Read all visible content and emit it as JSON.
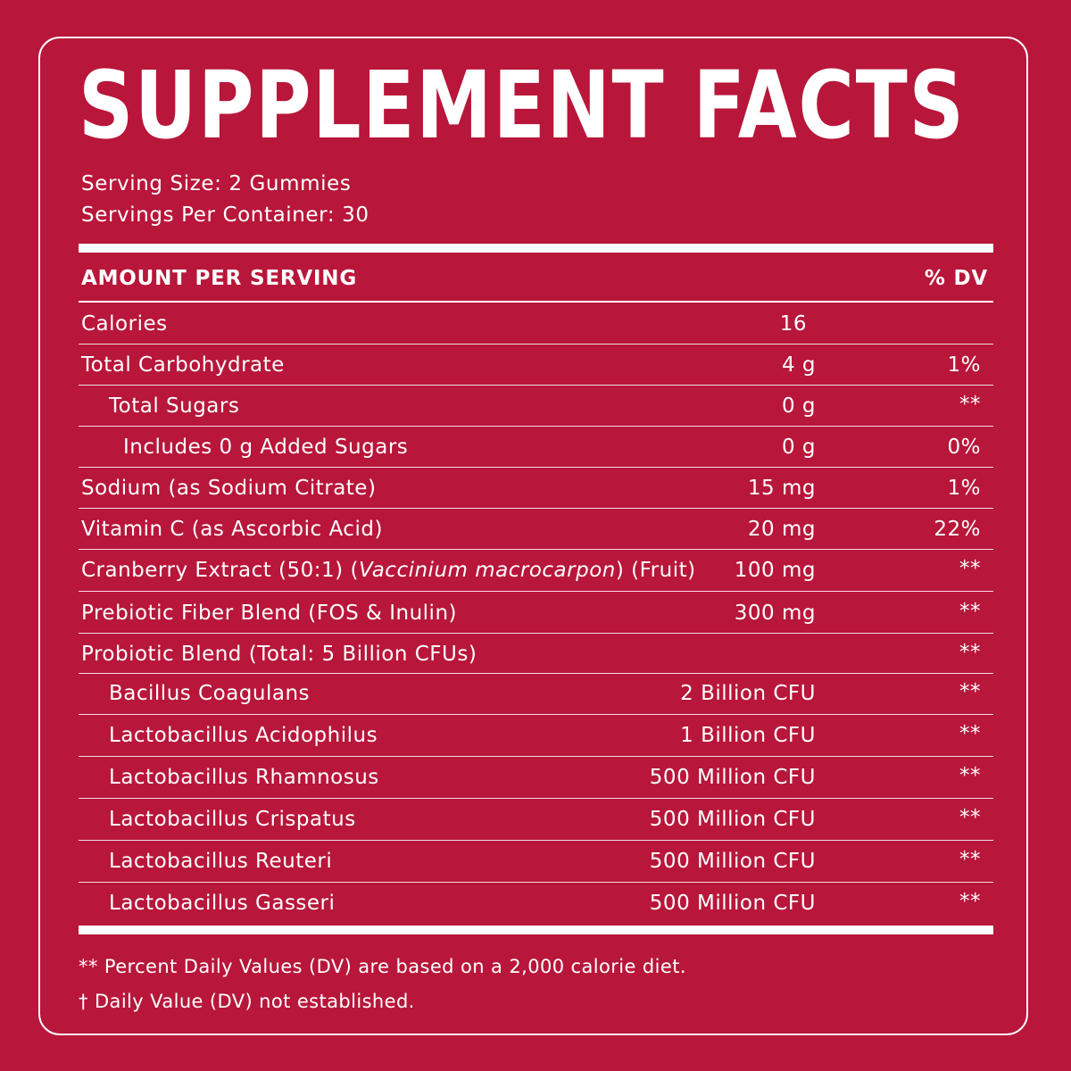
{
  "colors": {
    "background": "#b8163a",
    "text": "#ffffff"
  },
  "title": "SUPPLEMENT FACTS",
  "serving_size": "Serving Size: 2 Gummies",
  "servings_per_container": "Servings Per Container: 30",
  "header": {
    "amount_label": "AMOUNT PER SERVING",
    "dv_label": "% DV"
  },
  "rows": [
    {
      "name": "Calories",
      "amount": "16",
      "dv": ""
    },
    {
      "name": "Total Carbohydrate",
      "amount": "4 g",
      "dv": "1%"
    },
    {
      "name": "Total Sugars",
      "amount": "0 g",
      "dv": "**"
    },
    {
      "name": "Includes 0 g Added Sugars",
      "amount": "0 g",
      "dv": "0%"
    },
    {
      "name": "Sodium (as Sodium Citrate)",
      "amount": "15 mg",
      "dv": "1%"
    },
    {
      "name": "Vitamin C (as Ascorbic Acid)",
      "amount": "20 mg",
      "dv": "22%"
    },
    {
      "name": "Cranberry Extract (50:1) (",
      "name_italic": "Vaccinium macrocarpon",
      "name_suffix": ") (Fruit)",
      "amount": "100 mg",
      "dv": "**"
    },
    {
      "name": "Prebiotic Fiber Blend (FOS & Inulin)",
      "amount": "300 mg",
      "dv": "**"
    },
    {
      "name": "Probiotic Blend (Total: 5 Billion CFUs)",
      "amount": "",
      "dv": "**"
    },
    {
      "name": "Bacillus Coagulans",
      "amount": "2 Billion CFU",
      "dv": "**"
    },
    {
      "name": "Lactobacillus Acidophilus",
      "amount": "1 Billion CFU",
      "dv": "**"
    },
    {
      "name": "Lactobacillus Rhamnosus",
      "amount": "500 Million CFU",
      "dv": "**"
    },
    {
      "name": "Lactobacillus Crispatus",
      "amount": "500 Million CFU",
      "dv": "**"
    },
    {
      "name": "Lactobacillus Reuteri",
      "amount": "500 Million CFU",
      "dv": "**"
    },
    {
      "name": "Lactobacillus Gasseri",
      "amount": "500 Million CFU",
      "dv": "**"
    }
  ],
  "footnotes": [
    "** Percent Daily Values (DV) are based on a 2,000 calorie diet.",
    "† Daily Value (DV) not established."
  ]
}
